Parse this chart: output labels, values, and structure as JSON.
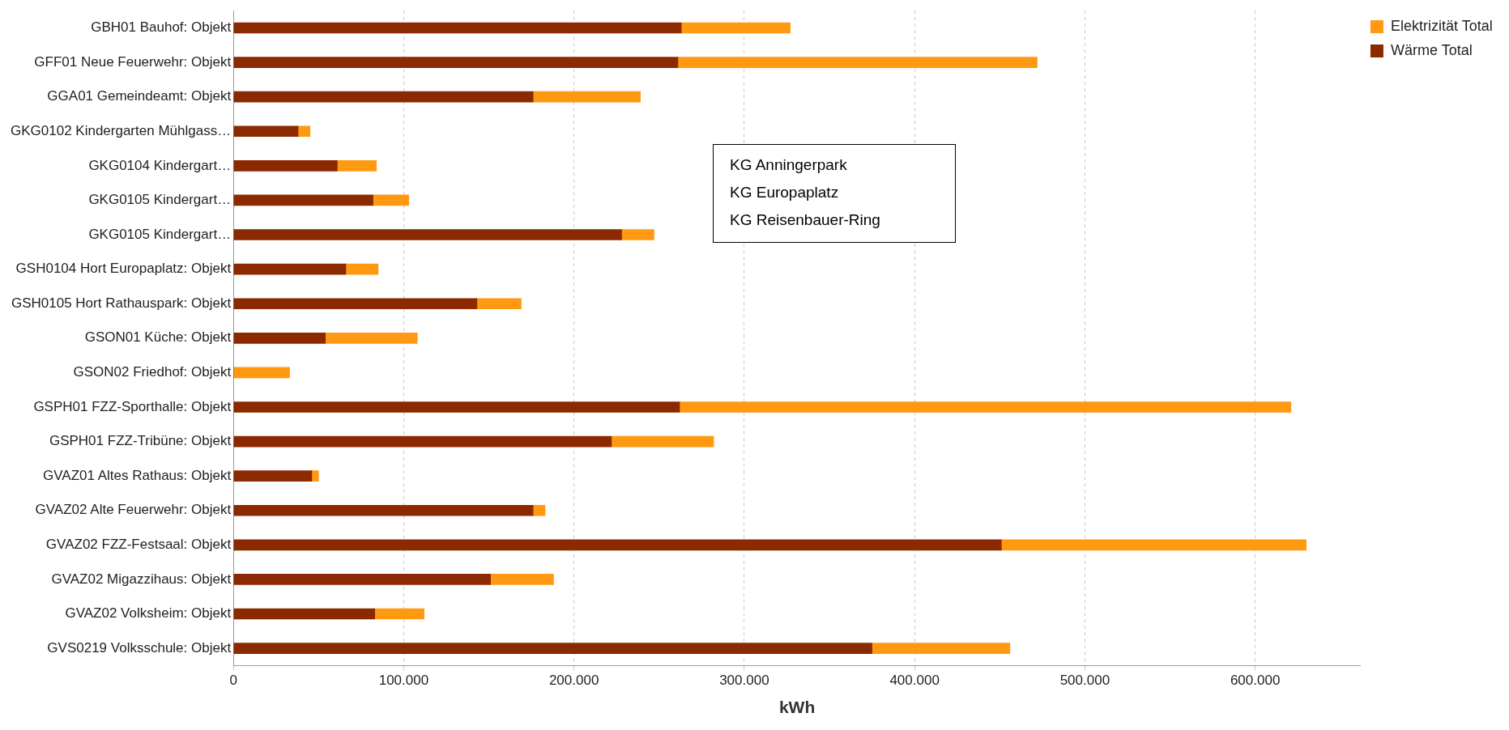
{
  "chart_data": {
    "type": "bar",
    "orientation": "horizontal",
    "stacked": true,
    "xlabel": "kWh",
    "categories": [
      "GBH01 Bauhof: Objekt",
      "GFF01 Neue Feuerwehr: Objekt",
      "GGA01 Gemeindeamt: Objekt",
      "GKG0102 Kindergarten Mühlgass…",
      "GKG0104 Kindergart…",
      "GKG0105 Kindergart…",
      "GKG0105 Kindergart…",
      "GSH0104 Hort Europaplatz: Objekt",
      "GSH0105 Hort Rathauspark: Objekt",
      "GSON01 Küche: Objekt",
      "GSON02 Friedhof: Objekt",
      "GSPH01 FZZ-Sporthalle: Objekt",
      "GSPH01 FZZ-Tribüne: Objekt",
      "GVAZ01 Altes Rathaus: Objekt",
      "GVAZ02 Alte Feuerwehr: Objekt",
      "GVAZ02 FZZ-Festsaal: Objekt",
      "GVAZ02 Migazzihaus: Objekt",
      "GVAZ02 Volksheim: Objekt",
      "GVS0219 Volksschule: Objekt"
    ],
    "series": [
      {
        "name": "Wärme Total",
        "color": "#8b2a00",
        "values": [
          263000,
          261000,
          176000,
          38000,
          61000,
          82000,
          228000,
          66000,
          143000,
          54000,
          0,
          262000,
          222000,
          46000,
          176000,
          451000,
          151000,
          83000,
          375000
        ]
      },
      {
        "name": "Elektrizität Total",
        "color": "#ff9912",
        "values": [
          64000,
          211000,
          63000,
          7000,
          23000,
          21000,
          19000,
          19000,
          26000,
          54000,
          33000,
          359000,
          60000,
          4000,
          7000,
          179000,
          37000,
          29000,
          81000
        ]
      }
    ],
    "xlim": [
      0,
      662000
    ],
    "xticks": [
      0,
      {
        "value": 100000,
        "label": "100.000"
      },
      {
        "value": 200000,
        "label": "200.000"
      },
      {
        "value": 300000,
        "label": "300.000"
      },
      {
        "value": 400000,
        "label": "400.000"
      },
      {
        "value": 500000,
        "label": "500.000"
      },
      {
        "value": 600000,
        "label": "600.000"
      }
    ],
    "grid": "x",
    "legend": "top right",
    "annotations": [
      "KG Anningerpark",
      "KG Europaplatz",
      "KG Reisenbauer-Ring"
    ]
  }
}
